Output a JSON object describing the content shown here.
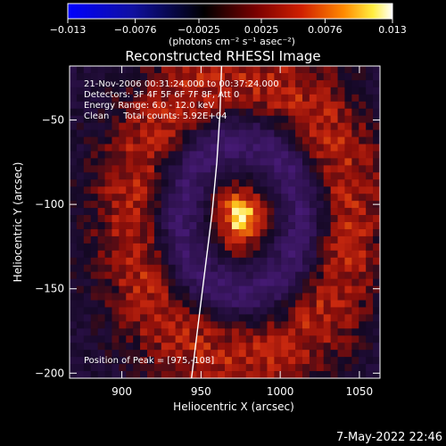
{
  "colorbar": {
    "tick_labels": [
      "−0.013",
      "−0.0076",
      "−0.0025",
      "0.0025",
      "0.0076",
      "0.013"
    ],
    "tick_values": [
      -0.013,
      -0.0076,
      -0.0025,
      0.0025,
      0.0076,
      0.013
    ],
    "range": [
      -0.013,
      0.013
    ],
    "units_label": "(photons cm⁻² s⁻¹ asec⁻²)",
    "colors": [
      "#0000ff",
      "#000000",
      "#c00000",
      "#ff7000",
      "#ffff00",
      "#ffffff"
    ]
  },
  "chart_data": {
    "type": "heatmap",
    "title": "Reconstructed RHESSI Image",
    "xlabel": "Heliocentric X (arcsec)",
    "ylabel": "Heliocentric Y (arcsec)",
    "xlim": [
      867,
      1063
    ],
    "ylim": [
      -203,
      -18
    ],
    "x_ticks": [
      900,
      950,
      1000,
      1050
    ],
    "y_ticks": [
      -50,
      -100,
      -150,
      -200
    ],
    "x_tick_labels": [
      "900",
      "950",
      "1000",
      "1050"
    ],
    "y_tick_labels": [
      "−50",
      "−100",
      "−150",
      "−200"
    ],
    "peak": {
      "x": 975,
      "y": -108
    },
    "limb_curve": [
      [
        963,
        -18
      ],
      [
        962,
        -45
      ],
      [
        960,
        -75
      ],
      [
        957,
        -105
      ],
      [
        953,
        -135
      ],
      [
        949,
        -165
      ],
      [
        944,
        -203
      ]
    ],
    "info_lines": [
      "21-Nov-2006 00:31:24.000 to 00:37:24.000",
      "Detectors: 3F 4F 5F 6F 7F 8F, Att 0",
      "Energy Range: 6.0 - 12.0 keV",
      "Clean     Total counts: 5.92E+04"
    ],
    "peak_label": "Position of Peak = [975,-108]"
  },
  "footer": {
    "timestamp": "7-May-2022 22:46"
  }
}
